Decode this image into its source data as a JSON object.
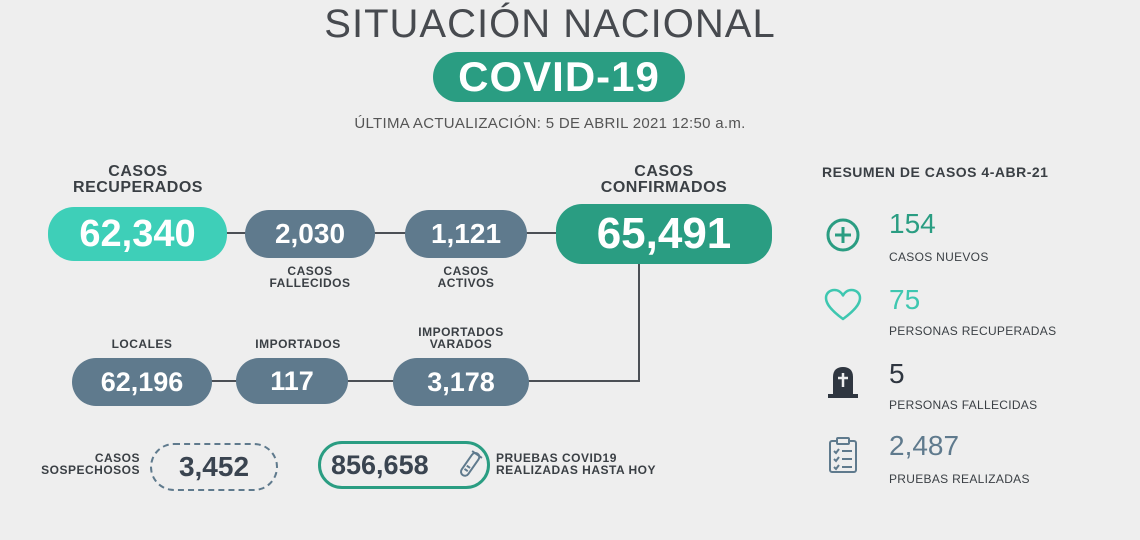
{
  "header": {
    "title": "SITUACIÓN NACIONAL",
    "badge": "COVID-19",
    "updated": "ÚLTIMA ACTUALIZACIÓN: 5 DE ABRIL 2021 12:50 a.m."
  },
  "flow": {
    "recuperados": {
      "label_1": "CASOS",
      "label_2": "RECUPERADOS",
      "value": "62,340"
    },
    "fallecidos": {
      "label_1": "CASOS",
      "label_2": "FALLECIDOS",
      "value": "2,030"
    },
    "activos": {
      "label_1": "CASOS",
      "label_2": "ACTIVOS",
      "value": "1,121"
    },
    "confirmados": {
      "label_1": "CASOS",
      "label_2": "CONFIRMADOS",
      "value": "65,491"
    },
    "locales": {
      "label": "LOCALES",
      "value": "62,196"
    },
    "importados": {
      "label": "IMPORTADOS",
      "value": "117"
    },
    "varados": {
      "label_1": "IMPORTADOS",
      "label_2": "VARADOS",
      "value": "3,178"
    },
    "sospechosos": {
      "label_1": "CASOS",
      "label_2": "SOSPECHOSOS",
      "value": "3,452"
    },
    "pruebas": {
      "label_1": "PRUEBAS COVID19",
      "label_2": "REALIZADAS HASTA HOY",
      "value": "856,658"
    }
  },
  "summary": {
    "heading": "RESUMEN DE CASOS 4-ABR-21",
    "items": [
      {
        "icon": "plus-circle-icon",
        "value": "154",
        "label": "CASOS NUEVOS",
        "color": "#2a9d82"
      },
      {
        "icon": "heart-icon",
        "value": "75",
        "label": "PERSONAS RECUPERADAS",
        "color": "#3ec7b0"
      },
      {
        "icon": "tombstone-icon",
        "value": "5",
        "label": "PERSONAS FALLECIDAS",
        "color": "#2f3640"
      },
      {
        "icon": "clipboard-checklist-icon",
        "value": "2,487",
        "label": "PRUEBAS REALIZADAS",
        "color": "#5f7a8d"
      }
    ]
  },
  "colors": {
    "teal_light": "#3ecfb8",
    "teal_dark": "#2a9d82",
    "slate": "#5f7a8d",
    "background": "#eeeeee"
  }
}
